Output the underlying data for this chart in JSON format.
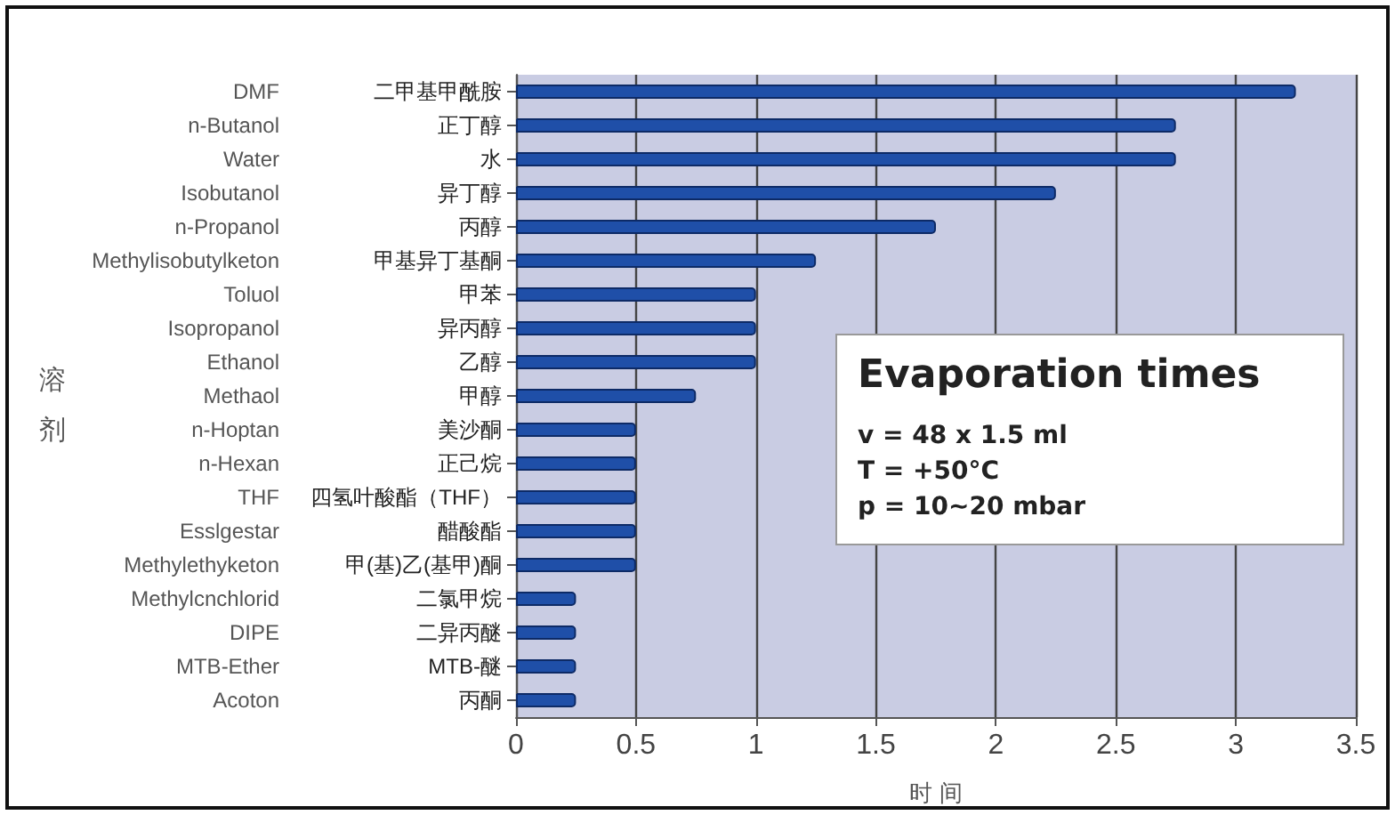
{
  "chart_data": {
    "type": "bar",
    "orientation": "horizontal",
    "title": "Evaporation times",
    "categories": [
      "二甲基甲酰胺",
      "正丁醇",
      "水",
      "异丁醇",
      "丙醇",
      "甲基异丁基酮",
      "甲苯",
      "异丙醇",
      "乙醇",
      "甲醇",
      "美沙酮",
      "正己烷",
      "四氢叶酸酯（THF）",
      "醋酸酯",
      "甲(基)乙(基甲)酮",
      "二氯甲烷",
      "二异丙醚",
      "MTB-醚",
      "丙酮"
    ],
    "y2_categories": [
      "DMF",
      "n-Butanol",
      "Water",
      "Isobutanol",
      "n-Propanol",
      "Methylisobutylketon",
      "Toluol",
      "Isopropanol",
      "Ethanol",
      "Methaol",
      "n-Hoptan",
      "n-Hexan",
      "THF",
      "Esslgestar",
      "Methylethyketon",
      "Methylcnchlorid",
      "DIPE",
      "MTB-Ether",
      "Acoton"
    ],
    "values": [
      3.25,
      2.75,
      2.75,
      2.25,
      1.75,
      1.25,
      1,
      1,
      1,
      0.75,
      0.5,
      0.5,
      0.5,
      0.5,
      0.5,
      0.25,
      0.25,
      0.25,
      0.25
    ],
    "color": "#1f4fa8",
    "xlabel": "时 间",
    "xlim": [
      0,
      3.5
    ],
    "xticks": [
      0,
      0.5,
      1,
      1.5,
      2,
      2.5,
      3,
      3.5
    ],
    "grid": "x",
    "annotations": [
      "溶剂",
      "v = 48 x 1.5 ml",
      "T = +50°C",
      "p = 10~20 mbar"
    ]
  }
}
